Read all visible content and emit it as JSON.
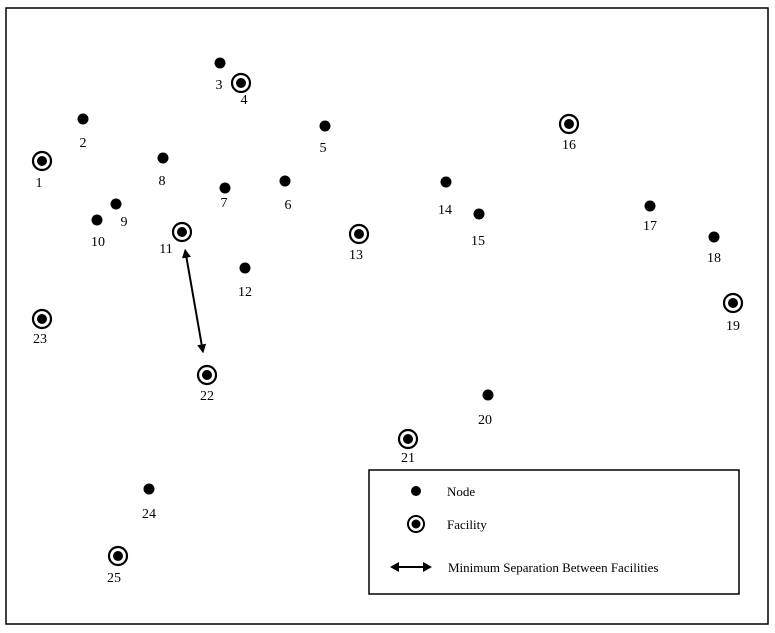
{
  "nodes": [
    {
      "id": "1",
      "label": "1",
      "type": "facility"
    },
    {
      "id": "2",
      "label": "2",
      "type": "node"
    },
    {
      "id": "3",
      "label": "3",
      "type": "node"
    },
    {
      "id": "4",
      "label": "4",
      "type": "facility"
    },
    {
      "id": "5",
      "label": "5",
      "type": "node"
    },
    {
      "id": "6",
      "label": "6",
      "type": "node"
    },
    {
      "id": "7",
      "label": "7",
      "type": "node"
    },
    {
      "id": "8",
      "label": "8",
      "type": "node"
    },
    {
      "id": "9",
      "label": "9",
      "type": "node"
    },
    {
      "id": "10",
      "label": "10",
      "type": "node"
    },
    {
      "id": "11",
      "label": "11",
      "type": "facility"
    },
    {
      "id": "12",
      "label": "12",
      "type": "node"
    },
    {
      "id": "13",
      "label": "13",
      "type": "facility"
    },
    {
      "id": "14",
      "label": "14",
      "type": "node"
    },
    {
      "id": "15",
      "label": "15",
      "type": "node"
    },
    {
      "id": "16",
      "label": "16",
      "type": "facility"
    },
    {
      "id": "17",
      "label": "17",
      "type": "node"
    },
    {
      "id": "18",
      "label": "18",
      "type": "node"
    },
    {
      "id": "19",
      "label": "19",
      "type": "facility"
    },
    {
      "id": "20",
      "label": "20",
      "type": "node"
    },
    {
      "id": "21",
      "label": "21",
      "type": "facility"
    },
    {
      "id": "22",
      "label": "22",
      "type": "facility"
    },
    {
      "id": "23",
      "label": "23",
      "type": "facility"
    },
    {
      "id": "24",
      "label": "24",
      "type": "node"
    },
    {
      "id": "25",
      "label": "25",
      "type": "facility"
    }
  ],
  "separation_arrow": {
    "from": "11",
    "to": "22"
  },
  "legend": {
    "node_label": "Node",
    "facility_label": "Facility",
    "separation_label": "Minimum Separation Between Facilities"
  }
}
